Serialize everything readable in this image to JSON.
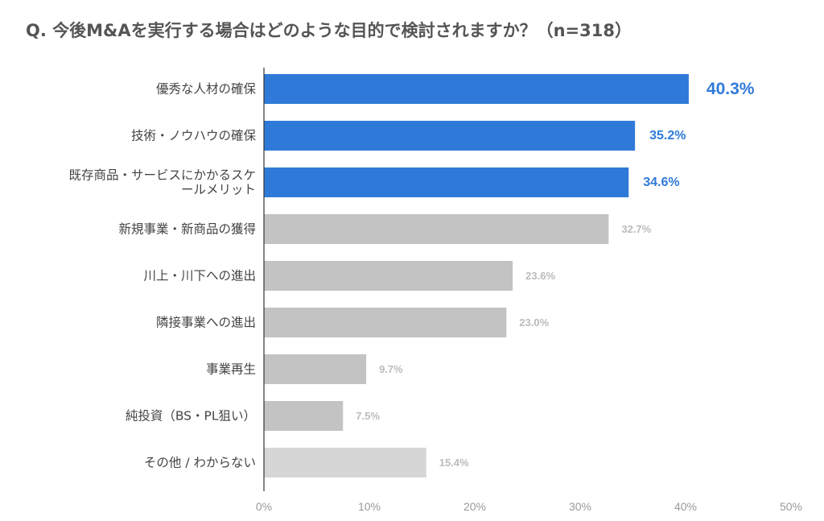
{
  "chart_data": {
    "type": "bar",
    "orientation": "horizontal",
    "title": "Q. 今後M&Aを実行する場合はどのような目的で検討されますか？（n=318）",
    "categories": [
      [
        "優秀な人材の確保"
      ],
      [
        "技術・ノウハウの確保"
      ],
      [
        "既存商品・サービスにかかるスケ",
        "ールメリット"
      ],
      [
        "新規事業・新商品の獲得"
      ],
      [
        "川上・川下への進出"
      ],
      [
        "隣接事業への進出"
      ],
      [
        "事業再生"
      ],
      [
        "純投資（BS・PL狙い）"
      ],
      [
        "その他 / わからない"
      ]
    ],
    "values": [
      40.3,
      35.2,
      34.6,
      32.7,
      23.6,
      23.0,
      9.7,
      7.5,
      15.4
    ],
    "value_labels": [
      "40.3%",
      "35.2%",
      "34.6%",
      "32.7%",
      "23.6%",
      "23.0%",
      "9.7%",
      "7.5%",
      "15.4%"
    ],
    "highlighted": [
      true,
      true,
      true,
      false,
      false,
      false,
      false,
      false,
      false
    ],
    "xlim": [
      0,
      50
    ],
    "x_ticks": [
      0,
      10,
      20,
      30,
      40,
      50
    ],
    "x_tick_labels": [
      "0%",
      "10%",
      "20%",
      "30%",
      "40%",
      "50%"
    ],
    "xlabel": "",
    "ylabel": "",
    "grid": false,
    "legend": "none",
    "colors": {
      "highlight": "#2f7ad8",
      "normal": "#c3c3c3",
      "other": "#d6d6d6",
      "normal_label": "#bbbbbb",
      "axis": "#333333"
    }
  }
}
